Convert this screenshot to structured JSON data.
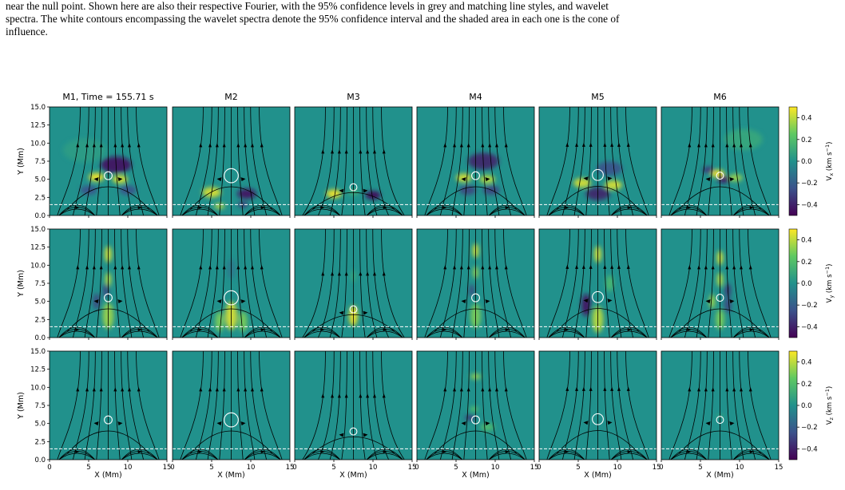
{
  "caption": {
    "lines": [
      "near the null point. Shown here are also their respective Fourier, with the 95% confidence levels in grey and matching line styles, and wavelet",
      "spectra. The white contours encompassing the wavelet spectra denote the 95% confidence interval and the shaded area in each one is the cone of",
      "influence."
    ]
  },
  "figure": {
    "column_titles": [
      "M1, Time = 155.71 s",
      "M2",
      "M3",
      "M4",
      "M5",
      "M6"
    ],
    "y_axis_label": "Y (Mm)",
    "x_axis_label": "X (Mm)",
    "y_tick_labels": [
      "15.0",
      "12.5",
      "10.0",
      "7.5",
      "5.0",
      "2.5",
      "0.0"
    ],
    "x_tick_labels": [
      "0",
      "5",
      "10",
      "15"
    ],
    "colorbar_labels": [
      "V_x (km s^-1)",
      "V_y (km s^-1)",
      "V_z (km s^-1)"
    ],
    "colorbar_tick_labels": [
      "0.4",
      "0.2",
      "0.0",
      "−0.2",
      "−0.4"
    ],
    "colormap": [
      "#440154",
      "#3b528b",
      "#21918c",
      "#5ec962",
      "#fde725"
    ]
  },
  "chart_data": {
    "type": "heatmap",
    "rows": [
      "V_x",
      "V_y",
      "V_z"
    ],
    "columns": [
      "M1",
      "M2",
      "M3",
      "M4",
      "M5",
      "M6"
    ],
    "xlim": [
      0,
      15
    ],
    "ylim": [
      0,
      15
    ],
    "color_range": [
      -0.5,
      0.5
    ],
    "x_ticks": [
      0,
      5,
      10,
      15
    ],
    "y_ticks": [
      0,
      2.5,
      5,
      7.5,
      10,
      12.5,
      15
    ],
    "colorbar_ticks": [
      0.4,
      0.2,
      0.0,
      -0.2,
      -0.4
    ],
    "null_point": {
      "x": 7.5,
      "y": [
        5.5,
        5.5,
        3.9,
        5.5,
        5.6,
        5.5
      ]
    },
    "circle_radius_mm": [
      0.5,
      0.9,
      0.45,
      0.5,
      0.7,
      0.45
    ],
    "dashed_line_y": 1.5,
    "fieldline_footpoints_x": [
      1.0,
      3.0,
      4.5,
      6.0,
      9.0,
      10.5,
      12.0,
      14.0
    ],
    "blobs": [
      [
        [
          {
            "x": 8.5,
            "y": 7.0,
            "s": 1.8,
            "a": -0.45
          },
          {
            "x": 6.0,
            "y": 5.3,
            "s": 0.9,
            "a": 0.5
          },
          {
            "x": 9.0,
            "y": 5.0,
            "s": 0.9,
            "a": 0.45
          },
          {
            "x": 5.0,
            "y": 3.5,
            "s": 1.0,
            "a": -0.25
          },
          {
            "x": 10.0,
            "y": 3.5,
            "s": 1.0,
            "a": -0.25
          },
          {
            "x": 4.5,
            "y": 9.0,
            "s": 2.5,
            "a": 0.05
          }
        ],
        [
          {
            "x": 5.0,
            "y": 3.2,
            "s": 1.1,
            "a": 0.45
          },
          {
            "x": 9.5,
            "y": 3.0,
            "s": 1.1,
            "a": -0.45
          },
          {
            "x": 6.0,
            "y": 1.3,
            "s": 0.6,
            "a": 0.4
          },
          {
            "x": 9.0,
            "y": 1.5,
            "s": 0.6,
            "a": -0.35
          }
        ],
        [
          {
            "x": 5.0,
            "y": 3.0,
            "s": 0.9,
            "a": 0.5
          },
          {
            "x": 10.0,
            "y": 2.8,
            "s": 0.9,
            "a": -0.5
          },
          {
            "x": 7.5,
            "y": 3.2,
            "s": 0.6,
            "a": 0.15
          }
        ],
        [
          {
            "x": 8.5,
            "y": 7.5,
            "s": 1.8,
            "a": -0.4
          },
          {
            "x": 6.0,
            "y": 5.2,
            "s": 0.9,
            "a": 0.45
          },
          {
            "x": 9.0,
            "y": 5.0,
            "s": 0.9,
            "a": 0.4
          },
          {
            "x": 6.5,
            "y": 3.5,
            "s": 1.0,
            "a": -0.3
          },
          {
            "x": 9.5,
            "y": 3.5,
            "s": 1.0,
            "a": -0.3
          }
        ],
        [
          {
            "x": 5.5,
            "y": 4.5,
            "s": 1.0,
            "a": 0.45
          },
          {
            "x": 9.5,
            "y": 4.2,
            "s": 1.0,
            "a": 0.45
          },
          {
            "x": 7.5,
            "y": 3.0,
            "s": 1.4,
            "a": -0.4
          },
          {
            "x": 9.0,
            "y": 6.5,
            "s": 1.5,
            "a": -0.25
          }
        ],
        [
          {
            "x": 7.2,
            "y": 5.8,
            "s": 0.8,
            "a": 0.5
          },
          {
            "x": 8.0,
            "y": 5.0,
            "s": 0.8,
            "a": -0.45
          },
          {
            "x": 6.0,
            "y": 6.3,
            "s": 0.7,
            "a": -0.35
          },
          {
            "x": 9.5,
            "y": 5.2,
            "s": 0.8,
            "a": 0.35
          },
          {
            "x": 10.5,
            "y": 10.5,
            "s": 2.2,
            "a": 0.1
          }
        ]
      ],
      [
        [
          {
            "x": 7.5,
            "y": 11.5,
            "s": 0.8,
            "a": 0.45
          },
          {
            "x": 7.5,
            "y": 8.0,
            "s": 0.7,
            "a": 0.4
          },
          {
            "x": 7.2,
            "y": 6.5,
            "s": 0.7,
            "a": -0.3
          },
          {
            "x": 7.5,
            "y": 3.0,
            "s": 1.3,
            "a": 0.35
          },
          {
            "x": 6.0,
            "y": 5.0,
            "s": 0.8,
            "a": -0.3
          }
        ],
        [
          {
            "x": 7.5,
            "y": 3.0,
            "s": 1.4,
            "a": 0.45
          },
          {
            "x": 6.0,
            "y": 2.2,
            "s": 1.0,
            "a": 0.3
          },
          {
            "x": 9.0,
            "y": 2.2,
            "s": 1.0,
            "a": 0.3
          },
          {
            "x": 7.5,
            "y": 9.5,
            "s": 1.0,
            "a": -0.1
          }
        ],
        [
          {
            "x": 7.5,
            "y": 3.0,
            "s": 1.0,
            "a": 0.5
          },
          {
            "x": 7.5,
            "y": 8.5,
            "s": 0.6,
            "a": 0.1
          }
        ],
        [
          {
            "x": 7.5,
            "y": 12.0,
            "s": 0.7,
            "a": 0.45
          },
          {
            "x": 7.5,
            "y": 9.0,
            "s": 0.6,
            "a": 0.35
          },
          {
            "x": 7.0,
            "y": 6.5,
            "s": 0.6,
            "a": -0.3
          },
          {
            "x": 7.5,
            "y": 3.0,
            "s": 1.2,
            "a": 0.3
          }
        ],
        [
          {
            "x": 7.5,
            "y": 11.5,
            "s": 0.8,
            "a": 0.45
          },
          {
            "x": 6.0,
            "y": 4.5,
            "s": 1.1,
            "a": -0.45
          },
          {
            "x": 7.5,
            "y": 2.5,
            "s": 1.3,
            "a": 0.4
          },
          {
            "x": 9.0,
            "y": 7.5,
            "s": 0.8,
            "a": 0.2
          }
        ],
        [
          {
            "x": 7.5,
            "y": 11.0,
            "s": 0.7,
            "a": 0.45
          },
          {
            "x": 7.5,
            "y": 8.0,
            "s": 0.7,
            "a": 0.4
          },
          {
            "x": 8.5,
            "y": 6.5,
            "s": 0.7,
            "a": -0.35
          },
          {
            "x": 6.5,
            "y": 5.0,
            "s": 0.7,
            "a": 0.35
          },
          {
            "x": 8.5,
            "y": 4.5,
            "s": 0.8,
            "a": -0.3
          },
          {
            "x": 7.5,
            "y": 2.5,
            "s": 1.0,
            "a": 0.3
          }
        ]
      ],
      [
        [],
        [],
        [],
        [
          {
            "x": 7.5,
            "y": 11.5,
            "s": 0.6,
            "a": 0.35
          },
          {
            "x": 7.3,
            "y": 7.0,
            "s": 0.5,
            "a": 0.25
          },
          {
            "x": 6.8,
            "y": 5.8,
            "s": 0.6,
            "a": -0.35
          },
          {
            "x": 9.0,
            "y": 4.5,
            "s": 0.8,
            "a": 0.2
          }
        ],
        [],
        [
          {
            "x": 7.5,
            "y": 6.0,
            "s": 0.4,
            "a": 0.1
          }
        ]
      ]
    ]
  }
}
